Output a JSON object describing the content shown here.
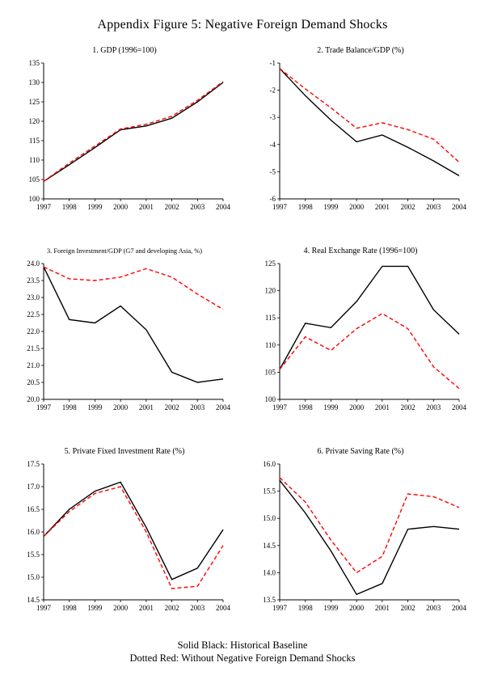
{
  "page": {
    "title": "Appendix Figure 5: Negative Foreign Demand Shocks",
    "footer": {
      "line1": "Solid Black: Historical Baseline",
      "line2": "Dotted Red: Without Negative Foreign Demand Shocks"
    }
  },
  "legend": {
    "baseline": {
      "label": "Historical Baseline",
      "color": "#000000",
      "style": "solid"
    },
    "counterfactual": {
      "label": "Without Negative Foreign Demand Shocks",
      "color": "#ff0000",
      "style": "dashed"
    }
  },
  "chart_data": [
    {
      "type": "line",
      "title": "1. GDP (1996=100)",
      "categories": [
        "1997",
        "1998",
        "1999",
        "2000",
        "2001",
        "2002",
        "2003",
        "2004"
      ],
      "ylim": [
        100,
        135
      ],
      "yticks": [
        "100",
        "105",
        "110",
        "115",
        "120",
        "125",
        "130",
        "135"
      ],
      "grid": false,
      "series": [
        {
          "name": "Historical Baseline",
          "color": "#000000",
          "style": "solid",
          "values": [
            104.5,
            108.8,
            113.2,
            117.8,
            118.8,
            120.8,
            125.0,
            130.0
          ]
        },
        {
          "name": "Without Negative Foreign Demand Shocks",
          "color": "#ff0000",
          "style": "dashed",
          "values": [
            104.5,
            109.2,
            113.6,
            118.0,
            119.2,
            121.3,
            125.4,
            130.2
          ]
        }
      ]
    },
    {
      "type": "line",
      "title": "2. Trade Balance/GDP (%)",
      "categories": [
        "1997",
        "1998",
        "1999",
        "2000",
        "2001",
        "2002",
        "2003",
        "2004"
      ],
      "ylim": [
        -6,
        -1
      ],
      "yticks": [
        "-6",
        "-5",
        "-4",
        "-3",
        "-2",
        "-1"
      ],
      "grid": false,
      "series": [
        {
          "name": "Historical Baseline",
          "color": "#000000",
          "style": "solid",
          "values": [
            -1.2,
            -2.2,
            -3.1,
            -3.9,
            -3.65,
            -4.1,
            -4.6,
            -5.15
          ]
        },
        {
          "name": "Without Negative Foreign Demand Shocks",
          "color": "#ff0000",
          "style": "dashed",
          "values": [
            -1.2,
            -1.95,
            -2.65,
            -3.4,
            -3.2,
            -3.45,
            -3.8,
            -4.65
          ]
        }
      ]
    },
    {
      "type": "line",
      "title": "3. Foreign Investment/GDP (G7 and developing Asia, %)",
      "categories": [
        "1997",
        "1998",
        "1999",
        "2000",
        "2001",
        "2002",
        "2003",
        "2004"
      ],
      "ylim": [
        20.0,
        24.0
      ],
      "yticks": [
        "20.0",
        "20.5",
        "21.0",
        "21.5",
        "22.0",
        "22.5",
        "23.0",
        "23.5",
        "24.0"
      ],
      "grid": false,
      "series": [
        {
          "name": "Historical Baseline",
          "color": "#000000",
          "style": "solid",
          "values": [
            23.9,
            22.35,
            22.25,
            22.75,
            22.05,
            20.8,
            20.5,
            20.6
          ]
        },
        {
          "name": "Without Negative Foreign Demand Shocks",
          "color": "#ff0000",
          "style": "dashed",
          "values": [
            23.9,
            23.55,
            23.5,
            23.6,
            23.85,
            23.6,
            23.1,
            22.65
          ]
        }
      ]
    },
    {
      "type": "line",
      "title": "4. Real Exchange Rate (1996=100)",
      "categories": [
        "1997",
        "1998",
        "1999",
        "2000",
        "2001",
        "2002",
        "2003",
        "2004"
      ],
      "ylim": [
        100,
        125
      ],
      "yticks": [
        "100",
        "105",
        "110",
        "115",
        "120",
        "125"
      ],
      "grid": false,
      "series": [
        {
          "name": "Historical Baseline",
          "color": "#000000",
          "style": "solid",
          "values": [
            105.5,
            114.0,
            113.2,
            118.0,
            124.5,
            124.5,
            116.5,
            112.0
          ]
        },
        {
          "name": "Without Negative Foreign Demand Shocks",
          "color": "#ff0000",
          "style": "dashed",
          "values": [
            105.5,
            111.5,
            109.0,
            113.0,
            115.8,
            113.0,
            106.0,
            102.0
          ]
        }
      ]
    },
    {
      "type": "line",
      "title": "5. Private Fixed Investment Rate (%)",
      "categories": [
        "1997",
        "1998",
        "1999",
        "2000",
        "2001",
        "2002",
        "2003",
        "2004"
      ],
      "ylim": [
        14.5,
        17.5
      ],
      "yticks": [
        "14.5",
        "15.0",
        "15.5",
        "16.0",
        "16.5",
        "17.0",
        "17.5"
      ],
      "grid": false,
      "series": [
        {
          "name": "Historical Baseline",
          "color": "#000000",
          "style": "solid",
          "values": [
            15.9,
            16.5,
            16.9,
            17.1,
            16.1,
            14.95,
            15.2,
            16.05
          ]
        },
        {
          "name": "Without Negative Foreign Demand Shocks",
          "color": "#ff0000",
          "style": "dashed",
          "values": [
            15.9,
            16.45,
            16.85,
            17.0,
            16.0,
            14.75,
            14.8,
            15.7
          ]
        }
      ]
    },
    {
      "type": "line",
      "title": "6. Private Saving Rate (%)",
      "categories": [
        "1997",
        "1998",
        "1999",
        "2000",
        "2001",
        "2002",
        "2003",
        "2004"
      ],
      "ylim": [
        13.5,
        16.0
      ],
      "yticks": [
        "13.5",
        "14.0",
        "14.5",
        "15.0",
        "15.5",
        "16.0"
      ],
      "grid": false,
      "series": [
        {
          "name": "Historical Baseline",
          "color": "#000000",
          "style": "solid",
          "values": [
            15.7,
            15.1,
            14.4,
            13.6,
            13.8,
            14.8,
            14.85,
            14.8
          ]
        },
        {
          "name": "Without Negative Foreign Demand Shocks",
          "color": "#ff0000",
          "style": "dashed",
          "values": [
            15.75,
            15.3,
            14.6,
            14.0,
            14.3,
            15.45,
            15.4,
            15.2
          ]
        }
      ]
    }
  ]
}
